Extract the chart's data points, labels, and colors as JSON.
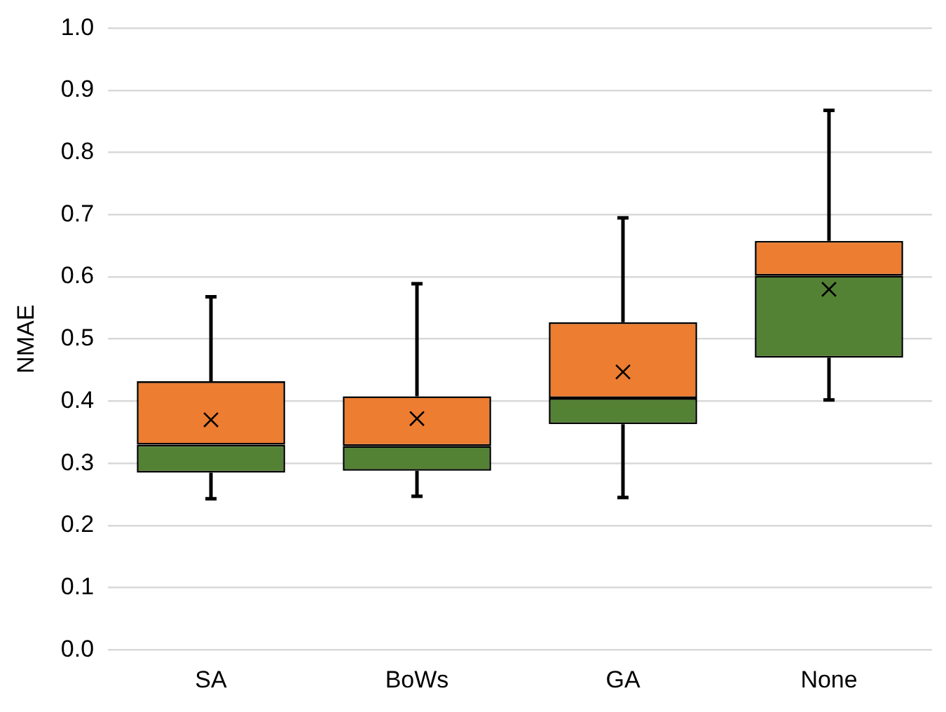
{
  "chart_data": {
    "type": "box",
    "ylabel": "NMAE",
    "categories": [
      "SA",
      "BoWs",
      "GA",
      "None"
    ],
    "colors": [
      [
        "#548235",
        "#ed7d31"
      ],
      [
        "#548235",
        "#ed7d31"
      ],
      [
        "#548235",
        "#ed7d31"
      ],
      [
        "#548235",
        "#ed7d31"
      ]
    ],
    "boxes": [
      {
        "low": 0.243,
        "q1": 0.285,
        "median": 0.33,
        "q3": 0.432,
        "high": 0.568,
        "mean": 0.37
      },
      {
        "low": 0.247,
        "q1": 0.288,
        "median": 0.328,
        "q3": 0.408,
        "high": 0.589,
        "mean": 0.372
      },
      {
        "low": 0.245,
        "q1": 0.363,
        "median": 0.405,
        "q3": 0.527,
        "high": 0.695,
        "mean": 0.447
      },
      {
        "low": 0.402,
        "q1": 0.47,
        "median": 0.602,
        "q3": 0.658,
        "high": 0.868,
        "mean": 0.58
      }
    ],
    "ylim": [
      0,
      1
    ],
    "yticks": [
      {
        "value": 0,
        "label": "0.0"
      },
      0.1,
      0.2,
      0.3,
      0.4,
      0.5,
      0.6,
      0.7,
      0.8,
      0.9,
      {
        "value": 1,
        "label": "1.0"
      }
    ],
    "grid": "y",
    "marker": "cross",
    "legend": false
  }
}
